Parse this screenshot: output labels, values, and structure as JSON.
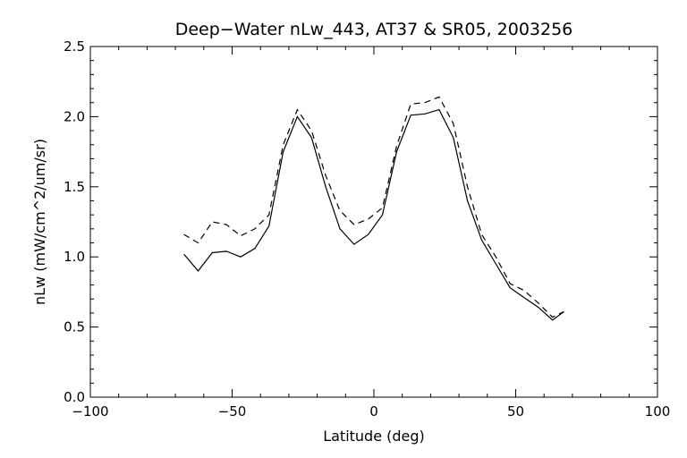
{
  "chart_data": {
    "type": "line",
    "title": "Deep−Water nLw_443, AT37 & SR05, 2003256",
    "xlabel": "Latitude (deg)",
    "ylabel": "nLw (mW/cm^2/um/sr)",
    "xlim": [
      -100,
      100
    ],
    "ylim": [
      0.0,
      2.5
    ],
    "x_ticks": [
      -100,
      -50,
      0,
      50,
      100
    ],
    "x_tick_labels": [
      "−100",
      "−50",
      "0",
      "50",
      "100"
    ],
    "y_ticks": [
      0.0,
      0.5,
      1.0,
      1.5,
      2.0,
      2.5
    ],
    "y_tick_labels": [
      "0.0",
      "0.5",
      "1.0",
      "1.5",
      "2.0",
      "2.5"
    ],
    "x_minor_step": 10,
    "y_minor_step": 0.1,
    "grid": false,
    "series": [
      {
        "style": "solid",
        "x": [
          -67,
          -62,
          -57,
          -52,
          -47,
          -42,
          -37,
          -32,
          -27,
          -22,
          -17,
          -12,
          -7,
          -2,
          3,
          8,
          13,
          18,
          23,
          28,
          33,
          38,
          43,
          48,
          53,
          58,
          63,
          67
        ],
        "y": [
          1.02,
          0.9,
          1.03,
          1.04,
          1.0,
          1.06,
          1.22,
          1.75,
          2.0,
          1.85,
          1.5,
          1.2,
          1.09,
          1.16,
          1.3,
          1.75,
          2.01,
          2.02,
          2.05,
          1.85,
          1.4,
          1.12,
          0.95,
          0.78,
          0.71,
          0.64,
          0.55,
          0.61
        ]
      },
      {
        "style": "dashed",
        "x": [
          -67,
          -62,
          -57,
          -52,
          -47,
          -42,
          -37,
          -32,
          -27,
          -22,
          -17,
          -12,
          -7,
          -2,
          3,
          8,
          13,
          18,
          23,
          28,
          33,
          38,
          43,
          48,
          53,
          58,
          63,
          67
        ],
        "y": [
          1.16,
          1.1,
          1.25,
          1.23,
          1.15,
          1.2,
          1.3,
          1.8,
          2.05,
          1.9,
          1.58,
          1.33,
          1.23,
          1.27,
          1.35,
          1.79,
          2.09,
          2.1,
          2.14,
          1.95,
          1.5,
          1.16,
          1.0,
          0.81,
          0.76,
          0.67,
          0.57,
          0.61
        ]
      }
    ]
  }
}
